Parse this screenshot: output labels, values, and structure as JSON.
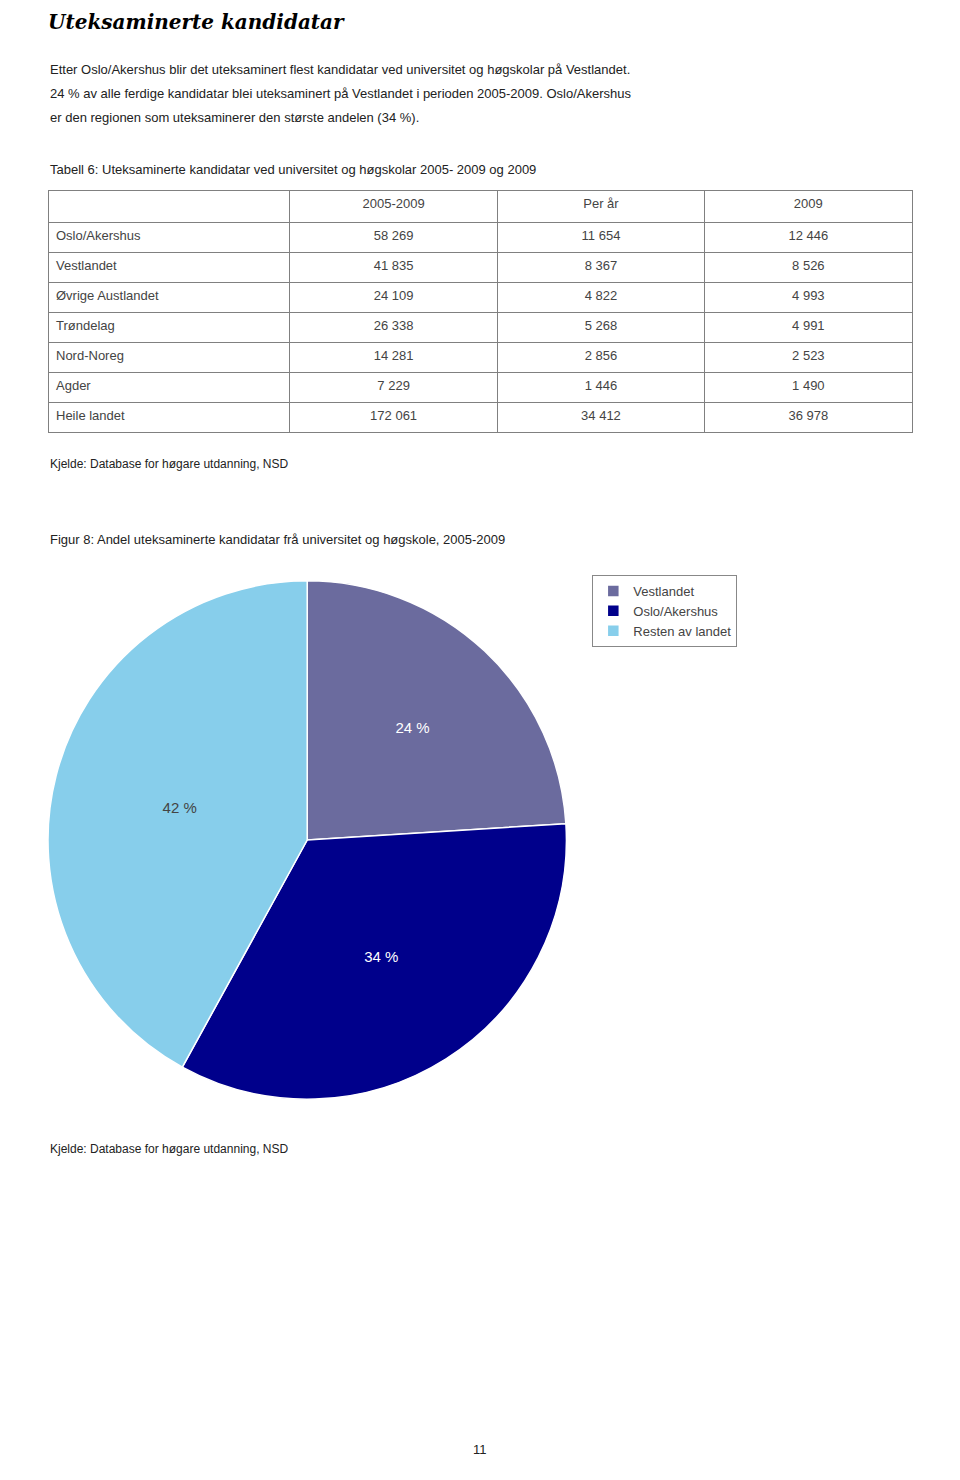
{
  "title": "Uteksaminerte kandidatar",
  "subtitle": [
    "Etter Oslo/Akershus blir det uteksaminert flest kandidatar ved universitet og høgskolar på Vestlandet.",
    "24 % av alle ferdige kandidatar blei uteksaminert på Vestlandet i perioden 2005-2009. Oslo/Akershus",
    "er den regionen som uteksaminerer den største andelen (34 %)."
  ],
  "annotations": [
    "11"
  ],
  "chart_data": [
    {
      "type": "table",
      "title": "Tabell 6: Uteksaminerte kandidatar ved universitet og høgskolar 2005- 2009 og 2009",
      "categories": [
        "Oslo/Akershus",
        "Vestlandet",
        "Øvrige Austlandet",
        "Trøndelag",
        "Nord-Noreg",
        "Agder",
        "Heile landet"
      ],
      "series": [
        {
          "name": "2005-2009",
          "values": [
            58269,
            41835,
            24109,
            26338,
            14281,
            7229,
            172061
          ],
          "value_labels": [
            "58 269",
            "41 835",
            "24 109",
            "26 338",
            "14 281",
            "7 229",
            "172 061"
          ]
        },
        {
          "name": "Per år",
          "values": [
            11654,
            8367,
            4822,
            5268,
            2856,
            1446,
            34412
          ],
          "value_labels": [
            "11 654",
            "8 367",
            "4 822",
            "5 268",
            "2 856",
            "1 446",
            "34 412"
          ]
        },
        {
          "name": "2009",
          "values": [
            12446,
            8526,
            4993,
            4991,
            2523,
            1490,
            36978
          ],
          "value_labels": [
            "12 446",
            "8 526",
            "4 993",
            "4 991",
            "2 523",
            "1 490",
            "36 978"
          ]
        }
      ],
      "annotations": [
        "Kjelde: Database for høgare utdanning, NSD"
      ]
    },
    {
      "type": "pie",
      "title": "Figur 8: Andel uteksaminerte kandidatar frå universitet og høgskole, 2005-2009",
      "categories": [
        "Vestlandet",
        "Oslo/Akershus",
        "Resten av landet"
      ],
      "values": [
        24,
        34,
        42
      ],
      "value_labels": [
        "24 %",
        "34 %",
        "42 %"
      ],
      "colors": [
        "#6b6b9e",
        "#00008b",
        "#87ceeb"
      ],
      "data_labels": true,
      "legend": "upper right",
      "annotations": [
        "Kjelde: Database for høgare utdanning, NSD"
      ]
    }
  ]
}
